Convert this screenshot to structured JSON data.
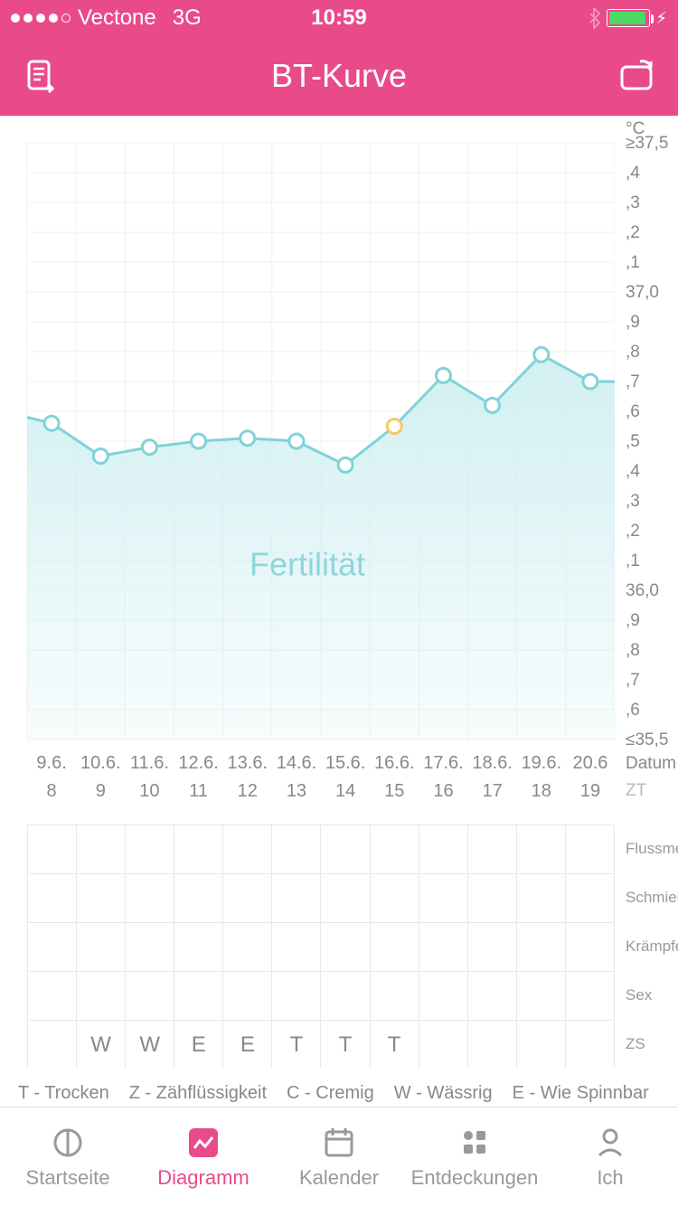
{
  "status": {
    "carrier": "Vectone",
    "network": "3G",
    "time": "10:59"
  },
  "nav": {
    "title": "BT-Kurve"
  },
  "chart": {
    "type": "line-area",
    "unit": "°C",
    "yticks": [
      "≥37,5",
      ",4",
      ",3",
      ",2",
      ",1",
      "37,0",
      ",9",
      ",8",
      ",7",
      ",6",
      ",5",
      ",4",
      ",3",
      ",2",
      ",1",
      "36,0",
      ",9",
      ",8",
      ",7",
      ",6",
      "≤35,5"
    ],
    "ylim_min": 35.5,
    "ylim_max": 37.5,
    "tick_step": 0.1,
    "grid_color": "#f0f0f0",
    "line_color": "#7fd3d9",
    "area_color": "#cdeef0",
    "point_fill": "#ffffff",
    "point_stroke": "#7fd3d9",
    "highlight_fill": "#ffffff",
    "highlight_stroke": "#f5c96b",
    "background": "#ffffff",
    "watermark": "Fertilität",
    "watermark_color": "#8fd6dc",
    "dates": [
      "9.6.",
      "10.6.",
      "11.6.",
      "12.6.",
      "13.6.",
      "14.6.",
      "15.6.",
      "16.6.",
      "17.6.",
      "18.6.",
      "19.6.",
      "20.6"
    ],
    "zt": [
      "8",
      "9",
      "10",
      "11",
      "12",
      "13",
      "14",
      "15",
      "16",
      "17",
      "18",
      "19"
    ],
    "values": [
      36.56,
      36.45,
      36.48,
      36.5,
      36.51,
      36.5,
      36.42,
      36.55,
      36.72,
      36.62,
      36.79,
      36.7
    ],
    "highlight_index": 7,
    "date_label": "Datum",
    "zt_label": "ZT"
  },
  "symptoms": {
    "rows": [
      {
        "label": "Flussmenge",
        "cells": [
          "",
          "",
          "",
          "",
          "",
          "",
          "",
          "",
          "",
          "",
          "",
          ""
        ]
      },
      {
        "label": "Schmierblutung",
        "cells": [
          "",
          "",
          "",
          "",
          "",
          "",
          "",
          "",
          "",
          "",
          "",
          ""
        ]
      },
      {
        "label": "Krämpfe",
        "cells": [
          "",
          "",
          "",
          "",
          "",
          "",
          "",
          "",
          "",
          "",
          "",
          ""
        ]
      },
      {
        "label": "Sex",
        "cells": [
          "",
          "",
          "",
          "",
          "",
          "",
          "",
          "",
          "",
          "",
          "",
          ""
        ]
      },
      {
        "label": "ZS",
        "cells": [
          "",
          "W",
          "W",
          "E",
          "E",
          "T",
          "T",
          "T",
          "",
          "",
          "",
          ""
        ]
      }
    ]
  },
  "legend": [
    "T - Trocken",
    "Z - Zähflüssigkeit",
    "C - Cremig",
    "W - Wässrig",
    "E - Wie Spinnbar"
  ],
  "tabs": [
    {
      "label": "Startseite",
      "active": false
    },
    {
      "label": "Diagramm",
      "active": true
    },
    {
      "label": "Kalender",
      "active": false
    },
    {
      "label": "Entdeckungen",
      "active": false
    },
    {
      "label": "Ich",
      "active": false
    }
  ]
}
